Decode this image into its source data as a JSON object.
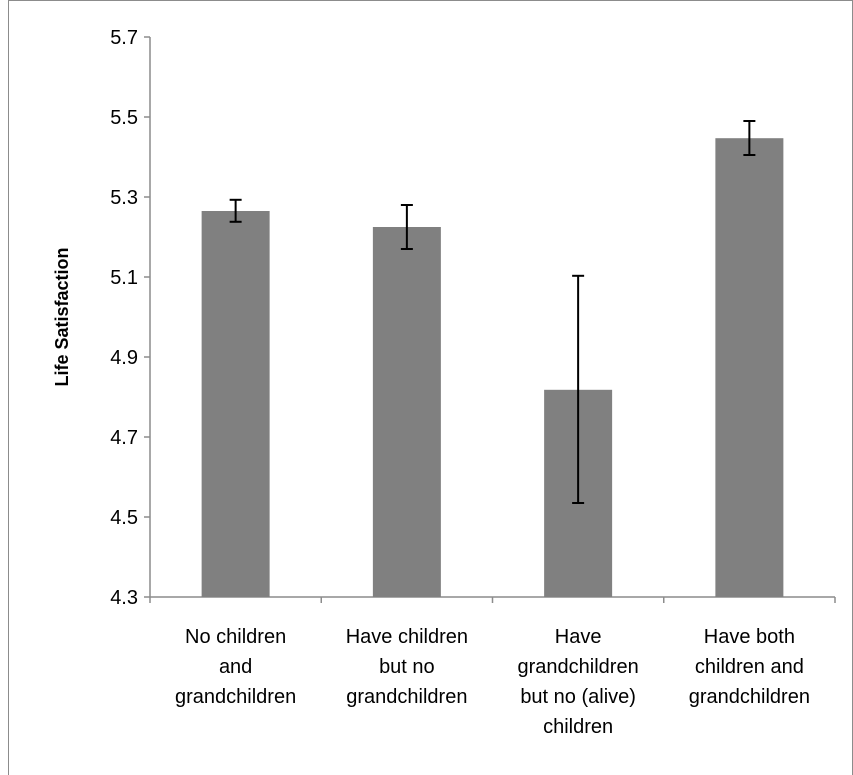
{
  "chart_data": {
    "type": "bar",
    "title": "",
    "xlabel": "",
    "ylabel": "Life Satisfaction",
    "ylim": [
      4.3,
      5.7
    ],
    "yticks": [
      "5.7",
      "5.5",
      "5.3",
      "5.1",
      "4.9",
      "4.7",
      "4.5",
      "4.3"
    ],
    "ytick_values": [
      5.7,
      5.5,
      5.3,
      5.1,
      4.9,
      4.7,
      4.5,
      4.3
    ],
    "grid": false,
    "legend": "none",
    "categories": [
      "No children and grandchildren",
      "Have children but no grandchildren",
      "Have grandchildren but no (alive) children",
      "Have both children and grandchildren"
    ],
    "category_lines": [
      [
        "No children",
        "and",
        "grandchildren"
      ],
      [
        "Have children",
        "but no",
        "grandchildren"
      ],
      [
        "Have",
        "grandchildren",
        "but no (alive)",
        "children"
      ],
      [
        "Have both",
        "children and",
        "grandchildren"
      ]
    ],
    "values": [
      5.265,
      5.225,
      4.818,
      5.447
    ],
    "error_low": [
      5.238,
      5.17,
      4.535,
      5.405
    ],
    "error_high": [
      5.293,
      5.28,
      5.103,
      5.49
    ],
    "colors": {
      "bar": "#808080",
      "axis": "#8c8c8c",
      "error_bar": "#000000"
    }
  }
}
